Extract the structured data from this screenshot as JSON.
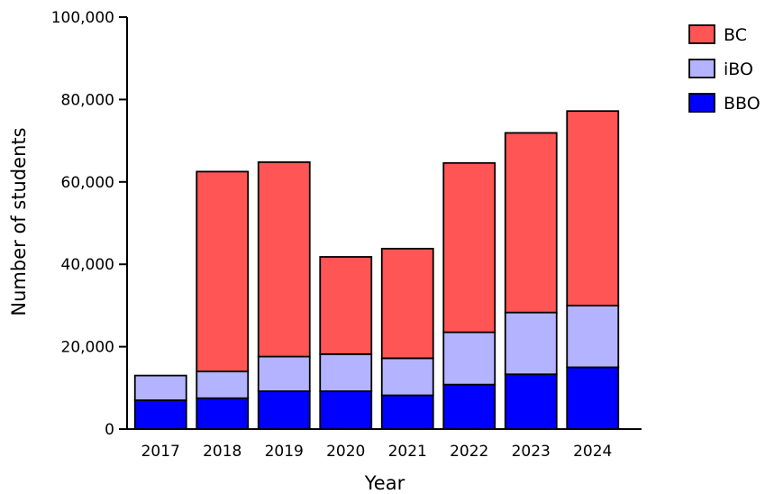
{
  "chart_data": {
    "type": "bar",
    "stacked": true,
    "xlabel": "Year",
    "ylabel": "Number of students",
    "ylim": [
      0,
      100000
    ],
    "yticks": [
      0,
      20000,
      40000,
      60000,
      80000,
      100000
    ],
    "ytick_labels": [
      "0",
      "20,000",
      "40,000",
      "60,000",
      "80,000",
      "100,000"
    ],
    "categories": [
      "2017",
      "2018",
      "2019",
      "2020",
      "2021",
      "2022",
      "2023",
      "2024"
    ],
    "series": [
      {
        "name": "BBO",
        "color": "#0000ff",
        "values": [
          7000,
          7500,
          9200,
          9200,
          8200,
          10800,
          13300,
          15000
        ]
      },
      {
        "name": "iBO",
        "color": "#b3b3ff",
        "values": [
          6000,
          6500,
          8400,
          9000,
          9000,
          12700,
          15000,
          15000
        ]
      },
      {
        "name": "BC",
        "color": "#ff5555",
        "values": [
          0,
          48500,
          47200,
          23600,
          26600,
          41100,
          43600,
          47200
        ]
      }
    ],
    "legend": {
      "position": "top-right",
      "order": [
        "BC",
        "iBO",
        "BBO"
      ]
    },
    "grid": false
  }
}
